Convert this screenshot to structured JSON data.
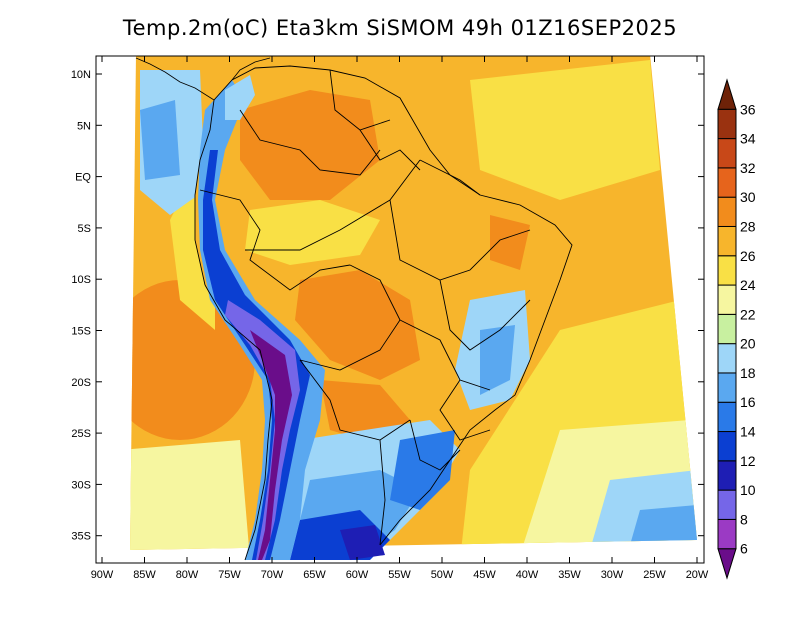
{
  "title": "Temp.2m(oC) Eta3km SiSMOM 49h 01Z16SEP2025",
  "map": {
    "lat_labels": [
      "10N",
      "5N",
      "EQ",
      "5S",
      "10S",
      "15S",
      "20S",
      "25S",
      "30S",
      "35S"
    ],
    "lon_labels": [
      "90W",
      "85W",
      "80W",
      "75W",
      "70W",
      "65W",
      "60W",
      "55W",
      "50W",
      "45W",
      "40W",
      "35W",
      "30W",
      "25W",
      "20W"
    ]
  },
  "colorbar": {
    "levels": [
      "6",
      "8",
      "10",
      "12",
      "14",
      "16",
      "18",
      "20",
      "22",
      "24",
      "26",
      "28",
      "30",
      "32",
      "34",
      "36"
    ],
    "colors": [
      "#6a0d8a",
      "#9b3ac4",
      "#7566e8",
      "#1e1eb4",
      "#0b3fd2",
      "#2a7ae8",
      "#5aa8f0",
      "#9ed6f8",
      "#c8f0a0",
      "#f6f6a0",
      "#f9e045",
      "#f7b52c",
      "#f28c1c",
      "#e6641c",
      "#c84818",
      "#9a3210",
      "#6e2208"
    ]
  }
}
